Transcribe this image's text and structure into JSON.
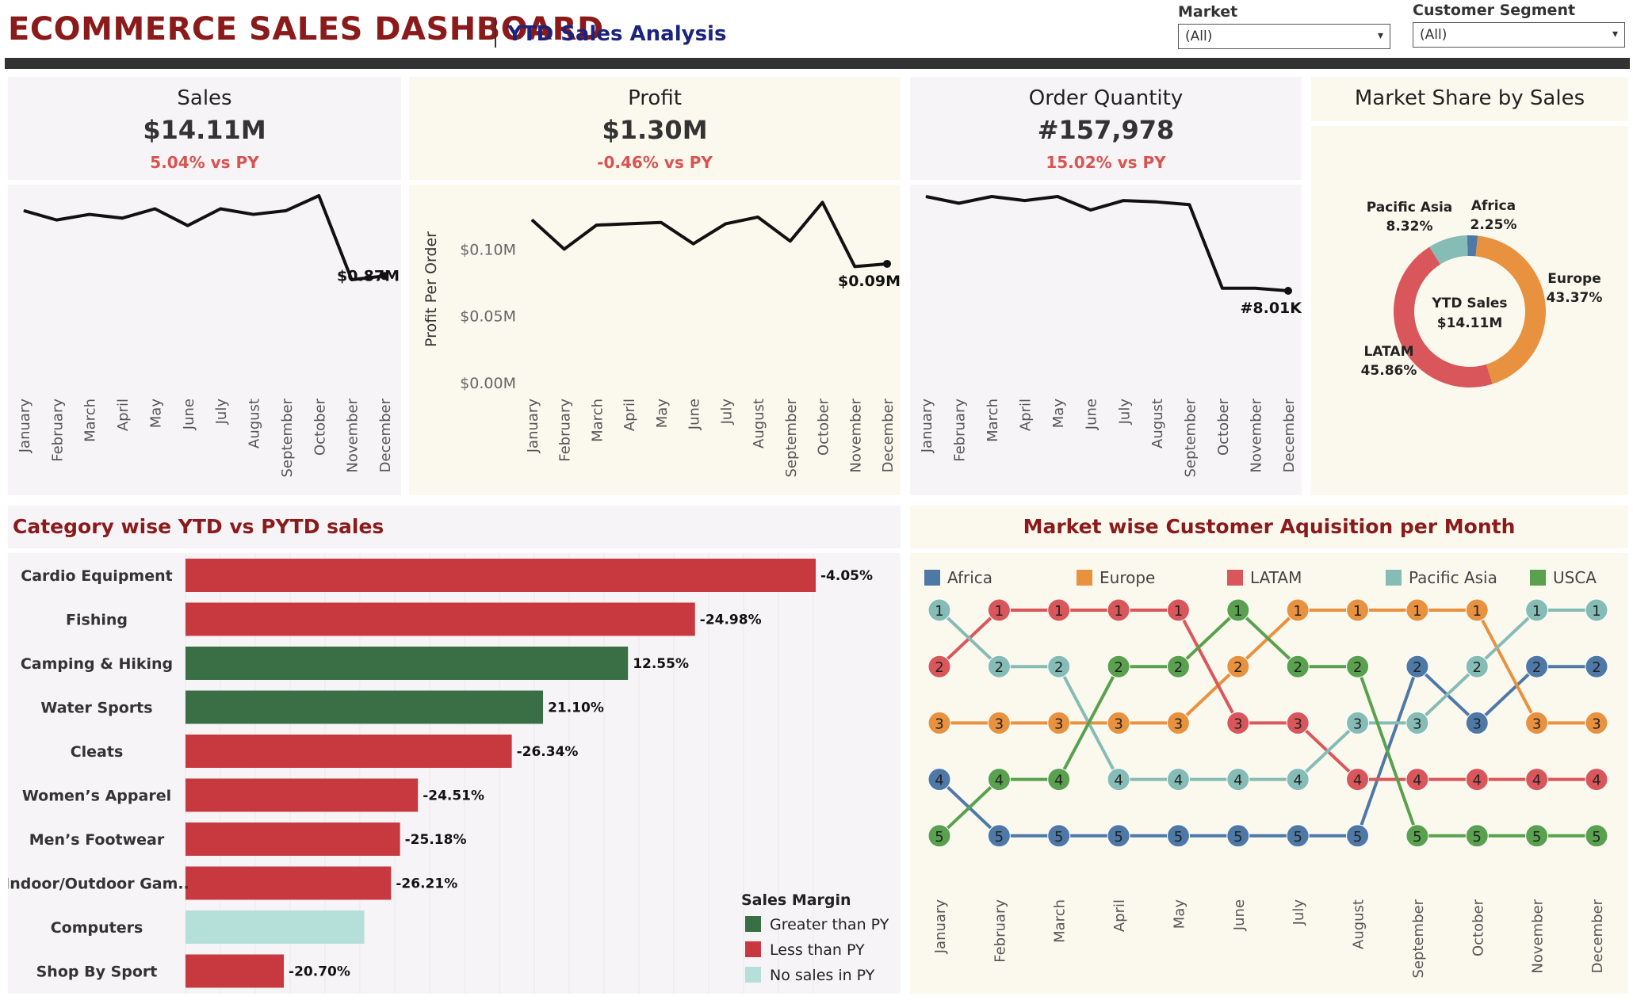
{
  "header": {
    "title": "ECOMMERCE SALES DASHBOARD",
    "subtitle": "YTD Sales Analysis"
  },
  "filters": [
    {
      "label": "Market",
      "value": "(All)"
    },
    {
      "label": "Customer Segment",
      "value": "(All)"
    }
  ],
  "months": [
    "January",
    "February",
    "March",
    "April",
    "May",
    "June",
    "July",
    "August",
    "September",
    "October",
    "November",
    "December"
  ],
  "kpis": {
    "sales": {
      "title": "Sales",
      "value": "$14.11M",
      "delta": "5.04% vs PY"
    },
    "profit": {
      "title": "Profit",
      "value": "$1.30M",
      "delta": "-0.46% vs PY"
    },
    "orders": {
      "title": "Order Quantity",
      "value": "#157,978",
      "delta": "15.02% vs PY"
    }
  },
  "market_share": {
    "title": "Market Share by Sales",
    "center_label": "YTD Sales",
    "center_value": "$14.11M"
  },
  "category": {
    "title": "Category wise YTD vs PYTD sales",
    "legend_title": "Sales Margin",
    "legend": [
      {
        "label": "Greater than PY",
        "color": "#3a6e45"
      },
      {
        "label": "Less than PY",
        "color": "#c8393f"
      },
      {
        "label": "No sales in PY",
        "color": "#b5e0da"
      }
    ]
  },
  "acquisition": {
    "title": "Market wise Customer Aquisition per Month"
  },
  "chart_data": [
    {
      "type": "line",
      "name": "sales",
      "x": [
        "January",
        "February",
        "March",
        "April",
        "May",
        "June",
        "July",
        "August",
        "September",
        "October",
        "November",
        "December"
      ],
      "values": [
        1.22,
        1.17,
        1.2,
        1.18,
        1.23,
        1.14,
        1.23,
        1.2,
        1.22,
        1.3,
        0.85,
        0.87
      ],
      "end_label": "$0.87M"
    },
    {
      "type": "line",
      "name": "profit",
      "x": [
        "January",
        "February",
        "March",
        "April",
        "May",
        "June",
        "July",
        "August",
        "September",
        "October",
        "November",
        "December"
      ],
      "values": [
        0.122,
        0.1,
        0.118,
        0.119,
        0.12,
        0.104,
        0.119,
        0.124,
        0.106,
        0.135,
        0.087,
        0.089
      ],
      "ylabel": "Profit Per Order",
      "yticks": [
        "$0.00M",
        "$0.05M",
        "$0.10M"
      ],
      "ylim": [
        0,
        0.14
      ],
      "end_label": "$0.09M"
    },
    {
      "type": "line",
      "name": "order_quantity",
      "x": [
        "January",
        "February",
        "March",
        "April",
        "May",
        "June",
        "July",
        "August",
        "September",
        "October",
        "November",
        "December"
      ],
      "values": [
        15.0,
        14.5,
        15.0,
        14.7,
        15.0,
        14.0,
        14.7,
        14.6,
        14.4,
        8.2,
        8.2,
        8.01
      ],
      "end_label": "#8.01K"
    },
    {
      "type": "pie",
      "name": "market_share",
      "labels": [
        "Africa",
        "Europe",
        "LATAM",
        "Pacific Asia"
      ],
      "values": [
        2.25,
        43.37,
        45.86,
        8.32
      ],
      "display": [
        "2.25%",
        "43.37%",
        "45.86%",
        "8.32%"
      ],
      "colors": [
        "#4e79a7",
        "#e8913e",
        "#d9575b",
        "#86bcb6"
      ]
    },
    {
      "type": "bar",
      "name": "category",
      "categories": [
        "Cardio Equipment",
        "Fishing",
        "Camping & Hiking",
        "Water Sports",
        "Cleats",
        "Women’s Apparel",
        "Men’s Footwear",
        "Indoor/Outdoor Gam..",
        "Computers",
        "Shop By Sport"
      ],
      "values": [
        1.41,
        1.14,
        0.99,
        0.8,
        0.73,
        0.52,
        0.48,
        0.46,
        0.4,
        0.22
      ],
      "labels": [
        "-4.05%",
        "-24.98%",
        "12.55%",
        "21.10%",
        "-26.34%",
        "-24.51%",
        "-25.18%",
        "-26.21%",
        "",
        "-20.70%"
      ],
      "margin": [
        "less",
        "less",
        "greater",
        "greater",
        "less",
        "less",
        "less",
        "less",
        "none",
        "less"
      ]
    },
    {
      "type": "line",
      "name": "customer_acquisition_rank",
      "x": [
        "January",
        "February",
        "March",
        "April",
        "May",
        "June",
        "July",
        "August",
        "September",
        "October",
        "November",
        "December"
      ],
      "series": [
        {
          "name": "Africa",
          "color": "#4e79a7",
          "values": [
            4,
            5,
            5,
            5,
            5,
            5,
            5,
            5,
            2,
            3,
            2,
            2
          ]
        },
        {
          "name": "Europe",
          "color": "#e8913e",
          "values": [
            3,
            3,
            3,
            3,
            3,
            2,
            1,
            1,
            1,
            1,
            3,
            3
          ]
        },
        {
          "name": "LATAM",
          "color": "#d9575b",
          "values": [
            2,
            1,
            1,
            1,
            1,
            3,
            3,
            4,
            4,
            4,
            4,
            4
          ]
        },
        {
          "name": "Pacific Asia",
          "color": "#86bcb6",
          "values": [
            1,
            2,
            2,
            4,
            4,
            4,
            4,
            3,
            3,
            2,
            1,
            1
          ]
        },
        {
          "name": "USCA",
          "color": "#59a14f",
          "values": [
            5,
            4,
            4,
            2,
            2,
            1,
            2,
            2,
            5,
            5,
            5,
            5
          ]
        }
      ]
    }
  ]
}
